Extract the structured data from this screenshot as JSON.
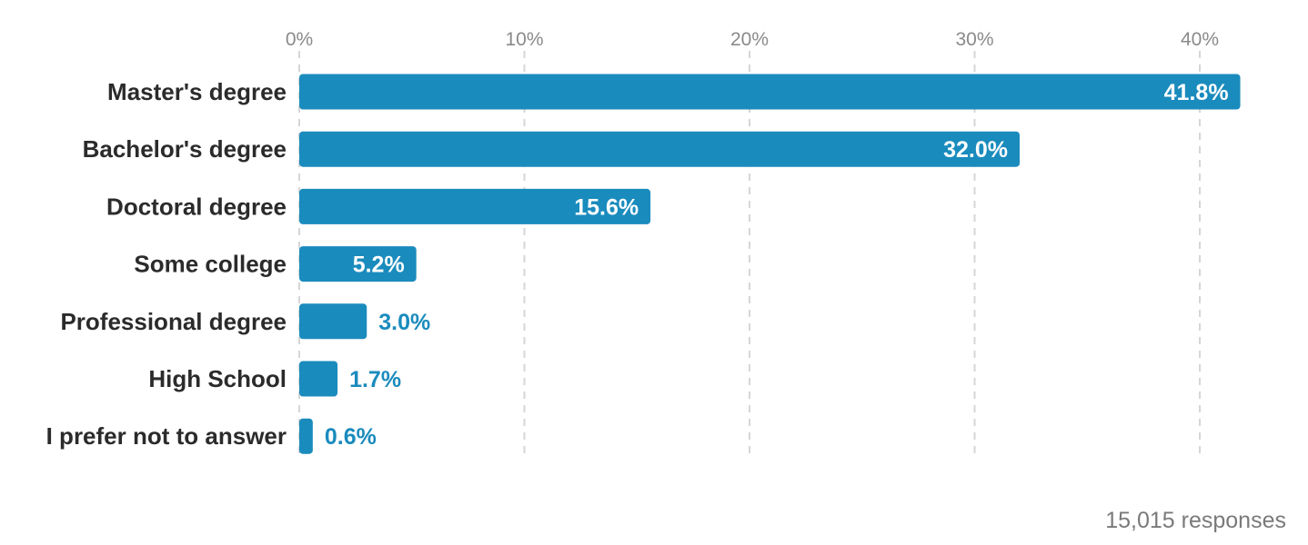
{
  "chart_data": {
    "type": "bar",
    "orientation": "horizontal",
    "categories": [
      "Master's degree",
      "Bachelor's degree",
      "Doctoral degree",
      "Some college",
      "Professional degree",
      "High School",
      "I prefer not to answer"
    ],
    "values": [
      41.8,
      32.0,
      15.6,
      5.2,
      3.0,
      1.7,
      0.6
    ],
    "value_labels": [
      "41.8%",
      "32.0%",
      "15.6%",
      "5.2%",
      "3.0%",
      "1.7%",
      "0.6%"
    ],
    "x_ticks": [
      0,
      10,
      20,
      30,
      40
    ],
    "x_tick_labels": [
      "0%",
      "10%",
      "20%",
      "30%",
      "40%"
    ],
    "xlim": [
      0,
      42
    ],
    "grid": true,
    "tick_position": "top",
    "title": "",
    "xlabel": "",
    "ylabel": ""
  },
  "colors": {
    "bar": "#1a8bbd",
    "label_inside": "#ffffff",
    "label_outside": "#1a8bbd"
  },
  "footnote": "15,015 responses"
}
